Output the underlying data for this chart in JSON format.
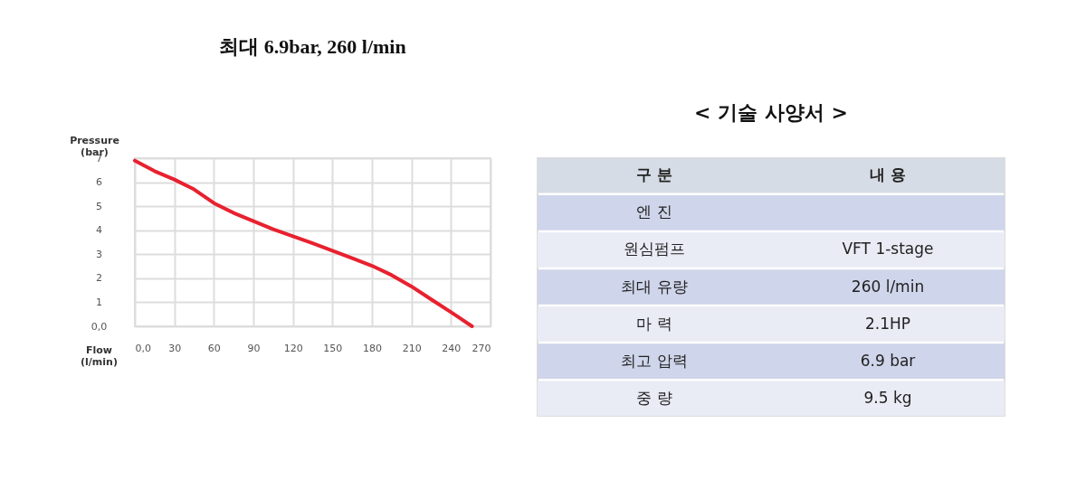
{
  "chart_data": [
    {
      "type": "line",
      "title": "최대 6.9bar, 260 l/min",
      "xlabel": "Flow\n(l/min)",
      "ylabel": "Pressure\n(bar)",
      "x": [
        0,
        15,
        30,
        45,
        60,
        75,
        90,
        105,
        120,
        135,
        150,
        165,
        180,
        195,
        210,
        225,
        240,
        256
      ],
      "series": [
        {
          "color": "#e8212f",
          "values": [
            6.9,
            6.46,
            6.11,
            5.7,
            5.13,
            4.72,
            4.38,
            4.04,
            3.75,
            3.46,
            3.15,
            2.84,
            2.52,
            2.13,
            1.66,
            1.12,
            0.59,
            0
          ]
        }
      ],
      "xlim": [
        0,
        270
      ],
      "ylim": [
        0,
        7
      ],
      "xticks": [
        {
          "value": 0,
          "label": "0,0"
        },
        30,
        60,
        90,
        120,
        150,
        180,
        210,
        240,
        270
      ],
      "yticks": [
        {
          "value": 0,
          "label": "0,0"
        },
        1,
        2,
        3,
        4,
        5,
        6,
        7
      ],
      "grid": true,
      "marker": "none",
      "line_style": "solid"
    },
    {
      "type": "other",
      "title": "< 기술 사양서 >",
      "categories": [
        "구 분",
        "엔 진",
        "원심펌프",
        "최대 유량",
        "마 력",
        "최고 압력",
        "중 량"
      ],
      "value_labels": [
        "내 용",
        null,
        "VFT 1-stage",
        "260 l/min",
        "2.1HP",
        "6.9 bar",
        "9.5 kg"
      ],
      "colors": [
        "#d6dce5",
        "#cfd5ea",
        "#e9ebf5",
        "#cfd5ea",
        "#e9ebf5",
        "#cfd5ea",
        "#e9ebf5"
      ]
    }
  ]
}
